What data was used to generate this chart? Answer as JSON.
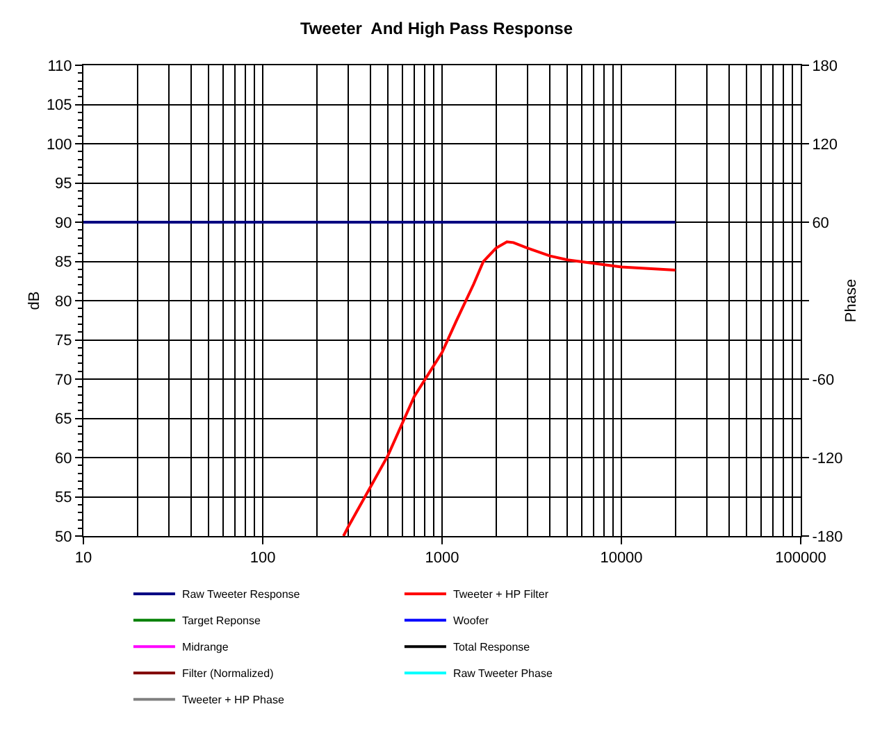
{
  "chart_data": {
    "type": "line",
    "title": "Tweeter  And High Pass Response",
    "ylabel": "dB",
    "y2label": "Phase",
    "log": "x",
    "grid": true,
    "legend": "bottom",
    "marker": "none",
    "line_style": "solid",
    "xlim": [
      10,
      100000
    ],
    "xticks": [
      10,
      100,
      1000,
      10000,
      100000
    ],
    "ylim": [
      50,
      110
    ],
    "yticks": [
      50,
      55,
      60,
      65,
      70,
      75,
      80,
      85,
      90,
      95,
      100,
      105,
      110
    ],
    "y2lim": [
      -180,
      180
    ],
    "y2ticks": [
      -180,
      -120,
      -60,
      {
        "value": 0,
        "label": null
      },
      60,
      120,
      180
    ],
    "series": [
      {
        "name": "Raw Tweeter Response",
        "color": "#000080",
        "x": [
          10,
          20000
        ],
        "values": [
          90,
          90
        ]
      },
      {
        "name": "Tweeter + HP Filter",
        "color": "#ff0000",
        "x": [
          282,
          300,
          400,
          500,
          700,
          1000,
          1200,
          1500,
          1700,
          2000,
          2300,
          2500,
          3000,
          4000,
          5000,
          10000,
          20000
        ],
        "values": [
          50,
          51.2,
          56.3,
          60.3,
          67.8,
          73.4,
          77.4,
          82.1,
          85.0,
          86.7,
          87.5,
          87.4,
          86.7,
          85.7,
          85.2,
          84.3,
          83.9
        ]
      },
      {
        "name": "Target Reponse",
        "color": "#008000"
      },
      {
        "name": "Woofer",
        "color": "#0000ff"
      },
      {
        "name": "Midrange",
        "color": "#ff00ff"
      },
      {
        "name": "Total Response",
        "color": "#000000"
      },
      {
        "name": "Filter (Normalized)",
        "color": "#800000"
      },
      {
        "name": "Raw Tweeter Phase",
        "color": "#00ffff",
        "axis": "y2"
      },
      {
        "name": "Tweeter + HP Phase",
        "color": "#808080",
        "axis": "y2"
      }
    ]
  }
}
